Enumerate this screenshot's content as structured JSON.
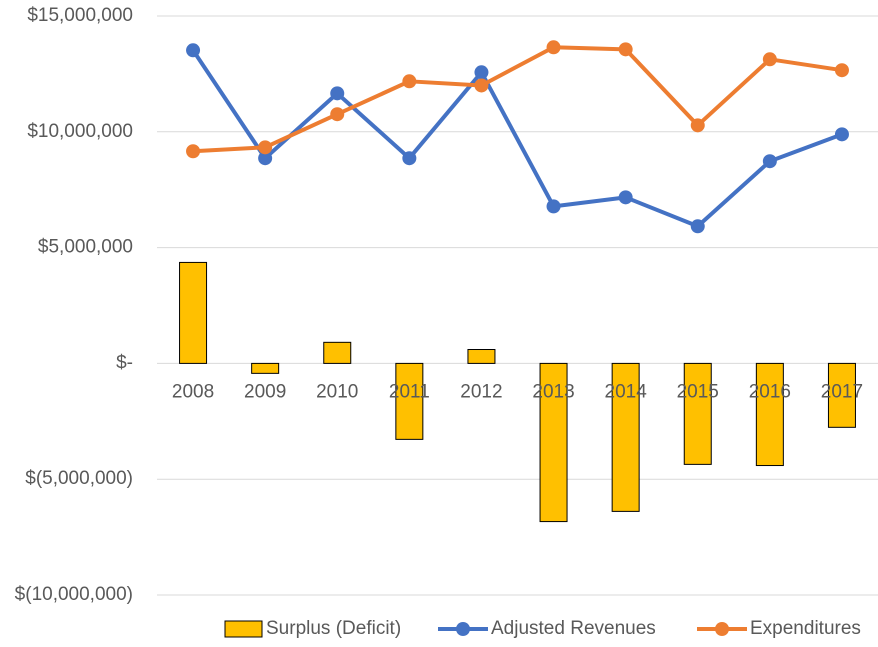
{
  "chart_data": {
    "type": "combo",
    "categories": [
      "2008",
      "2009",
      "2010",
      "2011",
      "2012",
      "2013",
      "2014",
      "2015",
      "2016",
      "2017"
    ],
    "series": [
      {
        "name": "Surplus (Deficit)",
        "type": "bar",
        "color": "#FFC000",
        "values": [
          4360000,
          -430000,
          910000,
          -3280000,
          600000,
          -6830000,
          -6390000,
          -4360000,
          -4410000,
          -2760000
        ]
      },
      {
        "name": "Adjusted Revenues",
        "type": "line",
        "color": "#4472C4",
        "values": [
          13520000,
          8860000,
          11660000,
          8860000,
          12570000,
          6780000,
          7170000,
          5920000,
          8730000,
          9890000
        ]
      },
      {
        "name": "Expenditures",
        "type": "line",
        "color": "#ED7D31",
        "values": [
          9160000,
          9330000,
          10760000,
          12180000,
          12000000,
          13650000,
          13560000,
          10280000,
          13130000,
          12660000
        ]
      }
    ],
    "ylim": [
      -10000000,
      15000000
    ],
    "yticks": [
      {
        "value": -10000000,
        "label": "$(10,000,000)"
      },
      {
        "value": -5000000,
        "label": "$(5,000,000)"
      },
      {
        "value": 0,
        "label": "$-"
      },
      {
        "value": 5000000,
        "label": "$5,000,000"
      },
      {
        "value": 10000000,
        "label": "$10,000,000"
      },
      {
        "value": 15000000,
        "label": "$15,000,000"
      }
    ],
    "grid": true,
    "legend": "bottom"
  }
}
